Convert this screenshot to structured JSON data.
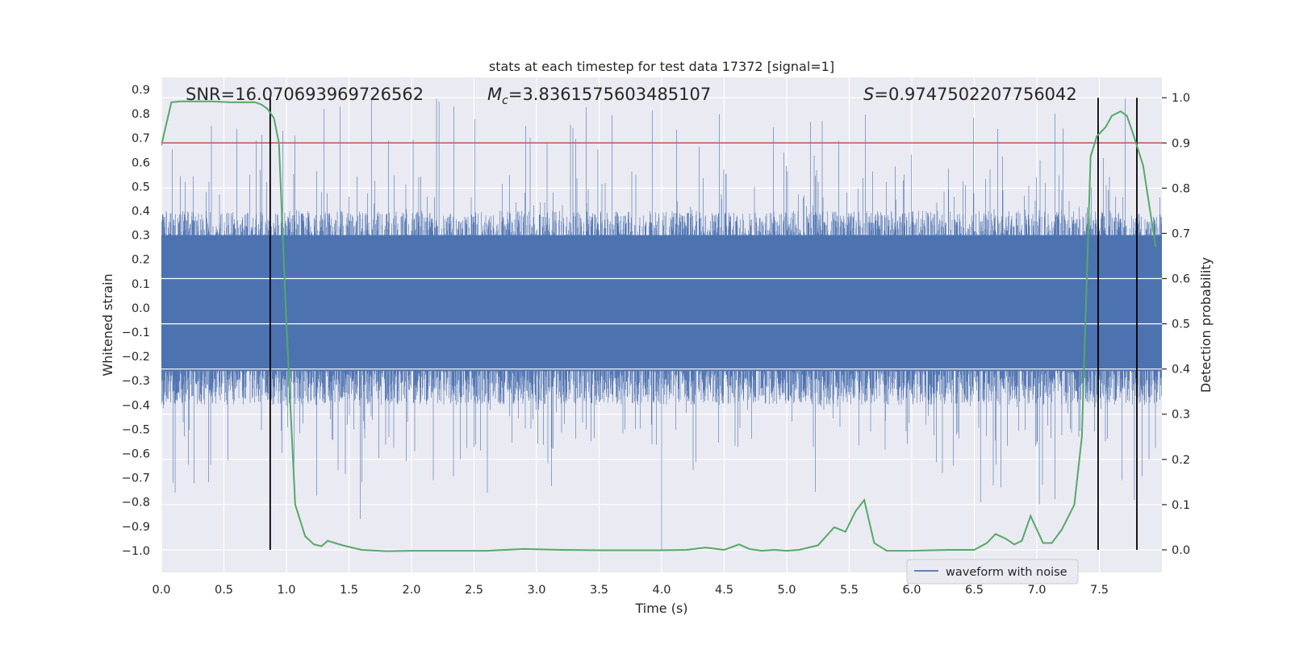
{
  "chart_data": {
    "type": "line",
    "title": "stats at each timestep for test data 17372 [signal=1]",
    "xlabel": "Time (s)",
    "ylabel_left": "Whitened strain",
    "ylabel_right": "Detection probability",
    "xlim": [
      0,
      8.0
    ],
    "ylim_left": [
      -1.09,
      0.95
    ],
    "ylim_right": [
      -0.05,
      1.045
    ],
    "x_ticks": [
      0.0,
      0.5,
      1.0,
      1.5,
      2.0,
      2.5,
      3.0,
      3.5,
      4.0,
      4.5,
      5.0,
      5.5,
      6.0,
      6.5,
      7.0,
      7.5
    ],
    "x_tick_labels": [
      "0.0",
      "0.5",
      "1.0",
      "1.5",
      "2.0",
      "2.5",
      "3.0",
      "3.5",
      "4.0",
      "4.5",
      "5.0",
      "5.5",
      "6.0",
      "6.5",
      "7.0",
      "7.5"
    ],
    "y_left_ticks": [
      0.9,
      0.8,
      0.7,
      0.6,
      0.5,
      0.4,
      0.3,
      0.2,
      0.1,
      0.0,
      -0.1,
      -0.2,
      -0.3,
      -0.4,
      -0.5,
      -0.6,
      -0.7,
      -0.8,
      -0.9,
      -1.0
    ],
    "y_left_tick_labels": [
      "0.9",
      "0.8",
      "0.7",
      "0.6",
      "0.5",
      "0.4",
      "0.3",
      "0.2",
      "0.1",
      "0.0",
      "−0.1",
      "−0.2",
      "−0.3",
      "−0.4",
      "−0.5",
      "−0.6",
      "−0.7",
      "−0.8",
      "−0.9",
      "−1.0"
    ],
    "y_right_ticks": [
      1.0,
      0.9,
      0.8,
      0.7,
      0.6,
      0.5,
      0.4,
      0.3,
      0.2,
      0.1,
      0.0
    ],
    "y_right_tick_labels": [
      "1.0",
      "0.9",
      "0.8",
      "0.7",
      "0.6",
      "0.5",
      "0.4",
      "0.3",
      "0.2",
      "0.1",
      "0.0"
    ],
    "grid": true,
    "legend_placement": "lower-right",
    "series": [
      {
        "name": "waveform with noise",
        "axis": "left",
        "color": "#4c72b0",
        "description_envelope": {
          "band_top": 0.3,
          "band_bottom": -0.26,
          "spike_max": 0.86,
          "spike_min": -1.0
        }
      },
      {
        "axis": "right",
        "color": "#55a868",
        "x": [
          0.0,
          0.08,
          0.15,
          0.25,
          0.4,
          0.55,
          0.7,
          0.75,
          0.8,
          0.85,
          0.9,
          0.94,
          1.0,
          1.07,
          1.15,
          1.22,
          1.28,
          1.33,
          1.45,
          1.6,
          1.8,
          2.0,
          2.3,
          2.6,
          2.9,
          3.2,
          3.5,
          3.8,
          4.0,
          4.2,
          4.35,
          4.5,
          4.62,
          4.7,
          4.8,
          4.9,
          5.0,
          5.1,
          5.25,
          5.38,
          5.47,
          5.55,
          5.62,
          5.7,
          5.8,
          6.0,
          6.3,
          6.5,
          6.6,
          6.67,
          6.75,
          6.82,
          6.88,
          6.95,
          7.05,
          7.12,
          7.2,
          7.3,
          7.36,
          7.43,
          7.48,
          7.55,
          7.6,
          7.67,
          7.72,
          7.77,
          7.85,
          7.95
        ],
        "y": [
          0.895,
          0.99,
          0.992,
          0.992,
          0.992,
          0.99,
          0.99,
          0.99,
          0.985,
          0.975,
          0.955,
          0.9,
          0.5,
          0.1,
          0.03,
          0.012,
          0.008,
          0.02,
          0.01,
          0.0,
          -0.003,
          -0.002,
          -0.002,
          -0.002,
          0.002,
          0.0,
          -0.001,
          -0.001,
          -0.001,
          0.0,
          0.005,
          0.0,
          0.012,
          0.002,
          -0.002,
          0.0,
          -0.002,
          0.0,
          0.01,
          0.05,
          0.04,
          0.085,
          0.11,
          0.015,
          -0.002,
          -0.002,
          0.0,
          0.0,
          0.015,
          0.035,
          0.025,
          0.012,
          0.02,
          0.075,
          0.015,
          0.015,
          0.045,
          0.1,
          0.25,
          0.87,
          0.915,
          0.935,
          0.96,
          0.97,
          0.96,
          0.92,
          0.85,
          0.67
        ]
      }
    ],
    "hlines": [
      {
        "axis": "right",
        "y": 0.9,
        "color": "#c44e52"
      }
    ],
    "vlines": [
      0.87,
      7.49,
      7.8
    ],
    "annotations": [
      {
        "id": "snr",
        "prefix": "SNR",
        "value": "16.070693969726562"
      },
      {
        "id": "mc",
        "prefix": "M",
        "sub": "c",
        "value": "3.8361575603485107"
      },
      {
        "id": "s",
        "prefix": "S",
        "value": "0.9747502207756042"
      }
    ]
  }
}
